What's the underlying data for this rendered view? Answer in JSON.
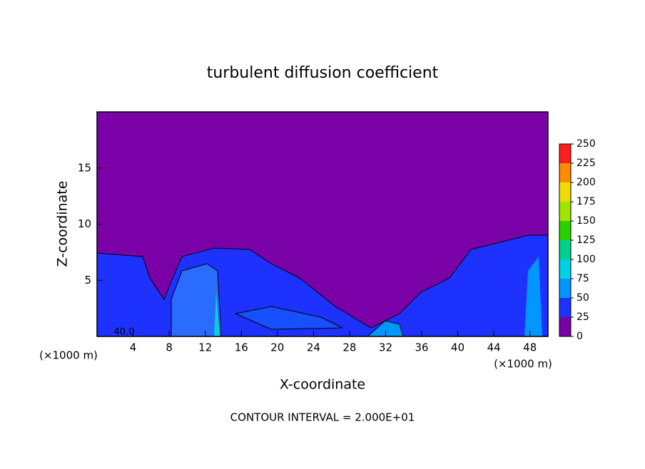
{
  "chart_data": {
    "type": "contour",
    "title": "turbulent diffusion coefficient",
    "xlabel": "X-coordinate",
    "ylabel": "Z-coordinate",
    "x_unit": "(×1000 m)",
    "footer": "CONTOUR INTERVAL = 2.000E+01",
    "contour_label": "40.0",
    "xlim": [
      0,
      50
    ],
    "xticks": [
      4,
      8,
      12,
      16,
      20,
      24,
      28,
      32,
      36,
      40,
      44,
      48
    ],
    "ylim": [
      0,
      20
    ],
    "yticks": [
      5,
      10,
      15
    ],
    "colorbar": {
      "lim": [
        0,
        250
      ],
      "ticks": [
        0,
        25,
        50,
        75,
        100,
        125,
        150,
        175,
        200,
        225,
        250
      ],
      "colors": [
        "#7a00a8",
        "#1e32ff",
        "#0096ff",
        "#00d2e6",
        "#00d28c",
        "#28d200",
        "#a0e600",
        "#f0dc00",
        "#ff8c00",
        "#ff1e1e"
      ]
    }
  }
}
